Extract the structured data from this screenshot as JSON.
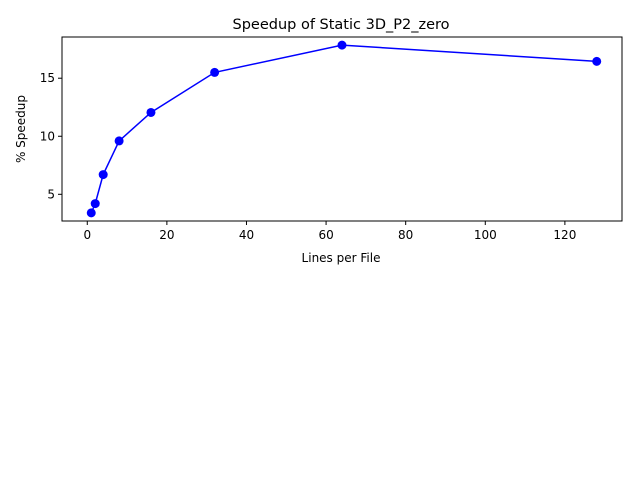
{
  "chart_data": {
    "type": "line",
    "title": "Speedup of Static 3D_P2_zero",
    "xlabel": "Lines per File",
    "ylabel": "% Speedup",
    "xlim": [
      -6.35,
      134.35
    ],
    "ylim": [
      2.7,
      18.55
    ],
    "xticks": [
      0,
      20,
      40,
      60,
      80,
      100,
      120
    ],
    "yticks": [
      5,
      10,
      15
    ],
    "grid": false,
    "legend": "none",
    "series": [
      {
        "color": "#0000ff",
        "marker": "circle",
        "x": [
          1,
          2,
          4,
          8,
          16,
          32,
          64,
          128
        ],
        "y": [
          3.4,
          4.2,
          6.7,
          9.6,
          12.05,
          15.5,
          17.85,
          16.45
        ]
      }
    ]
  }
}
